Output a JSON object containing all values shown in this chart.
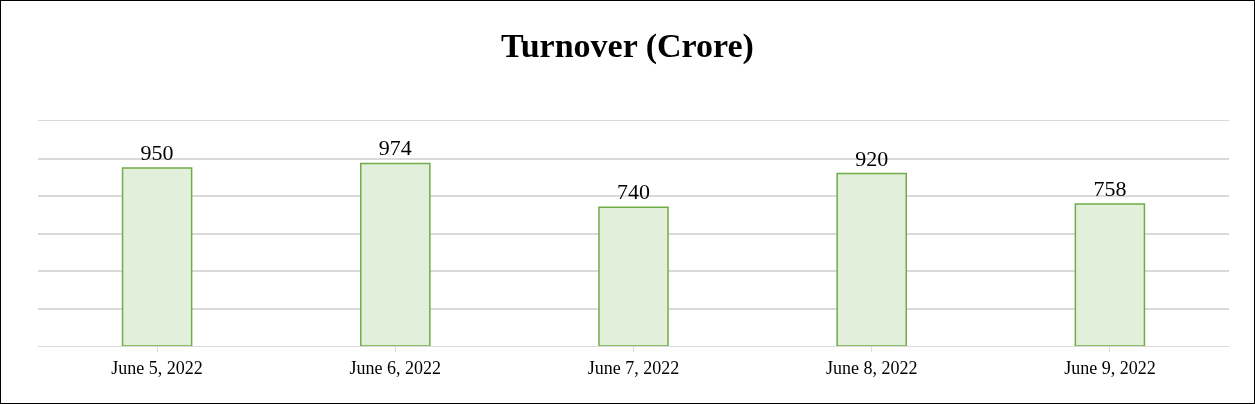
{
  "chart_data": {
    "type": "bar",
    "title": "Turnover (Crore)",
    "categories": [
      "June 5, 2022",
      "June 6, 2022",
      "June 7, 2022",
      "June 8, 2022",
      "June 9, 2022"
    ],
    "values": [
      950,
      974,
      740,
      920,
      758
    ],
    "color": "#e2efda",
    "ylim": [
      0,
      1200
    ],
    "yticks": [
      {
        "value": 0,
        "label": null
      },
      {
        "value": 200,
        "label": null
      },
      {
        "value": 400,
        "label": null
      },
      {
        "value": 600,
        "label": null
      },
      {
        "value": 800,
        "label": null
      },
      {
        "value": 1000,
        "label": null
      },
      {
        "value": 1200,
        "label": null
      }
    ],
    "grid": "y",
    "data_labels": true,
    "legend": false
  }
}
